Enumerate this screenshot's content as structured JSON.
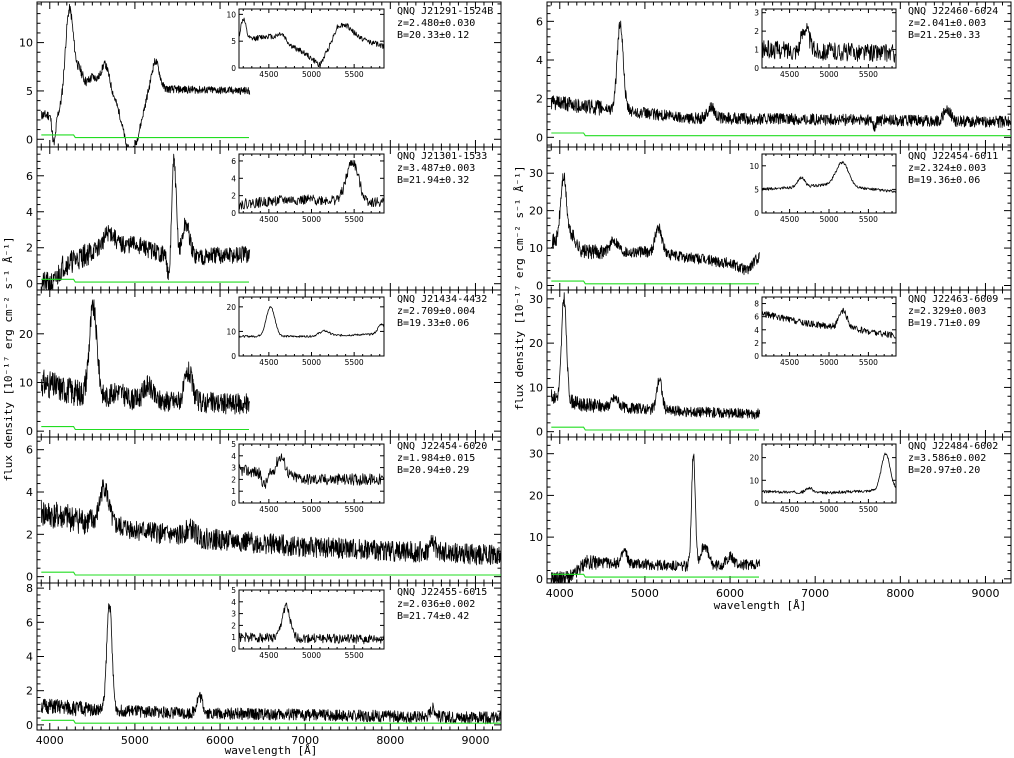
{
  "figure": {
    "xlabel_left": "wavelength [Å]",
    "xlabel_right": "wavelength [Å]",
    "ylabel_left": "flux density [10⁻¹⁷ erg cm⁻² s⁻¹ Å⁻¹]",
    "ylabel_right": "flux density [10⁻¹⁷ erg cm⁻² s⁻¹ Å⁻¹]",
    "colors": {
      "spectrum": "#000000",
      "error": "#22dd22",
      "background": "#ffffff"
    }
  },
  "chart_data": [
    {
      "type": "line",
      "column": "left",
      "row": 0,
      "labels": [
        "QNQ J21291-1524B",
        "z=2.480±0.030",
        "B=20.33±0.12"
      ],
      "xlim": [
        3850,
        9300
      ],
      "ylim": [
        -0.8,
        14.2
      ],
      "ytick_labels": [
        "0",
        "5",
        "10"
      ],
      "x_range": [
        3900,
        6350
      ],
      "series": [
        {
          "continuum": [
            [
              3900,
              2.5
            ],
            [
              4150,
              2.5
            ],
            [
              4500,
              6.5
            ],
            [
              4700,
              5.5
            ],
            [
              4900,
              2
            ],
            [
              5150,
              5
            ],
            [
              5300,
              5.2
            ],
            [
              6350,
              5
            ]
          ],
          "lines": [
            [
              4230,
              10,
              50
            ],
            [
              4350,
              2,
              40
            ],
            [
              4650,
              2,
              40
            ],
            [
              5240,
              3,
              45
            ]
          ],
          "absorptions": [
            [
              4050,
              3,
              20
            ],
            [
              4980,
              4,
              90
            ]
          ],
          "noise": 0.4,
          "seed": 11
        }
      ],
      "inset": {
        "xlim": [
          4150,
          5850
        ],
        "ylim": [
          0,
          11
        ],
        "ytick_labels": [
          "0",
          "5",
          "10"
        ],
        "xtick_labels": [
          "4500",
          "5000",
          "5500"
        ],
        "continuum": [
          [
            4150,
            5
          ],
          [
            4500,
            6
          ],
          [
            4900,
            3
          ],
          [
            5100,
            0.5
          ],
          [
            5300,
            7
          ],
          [
            5850,
            4
          ]
        ],
        "lines": [
          [
            4200,
            4,
            30
          ],
          [
            4650,
            1.5,
            50
          ],
          [
            5400,
            1.5,
            80
          ]
        ],
        "absorptions": [],
        "noise": 0.5,
        "seed": 12
      }
    },
    {
      "type": "line",
      "column": "left",
      "row": 1,
      "labels": [
        "QNQ J21301-1533",
        "z=3.487±0.003",
        "B=21.94±0.32"
      ],
      "xlim": [
        3850,
        9300
      ],
      "ylim": [
        -0.35,
        7.6
      ],
      "ytick_labels": [
        "0",
        "2",
        "4",
        "6"
      ],
      "x_range": [
        3900,
        6350
      ],
      "series": [
        {
          "continuum": [
            [
              3900,
              0
            ],
            [
              4050,
              0
            ],
            [
              4150,
              1
            ],
            [
              4600,
              2
            ],
            [
              5000,
              2.2
            ],
            [
              5400,
              1.5
            ],
            [
              6350,
              1.6
            ]
          ],
          "lines": [
            [
              5460,
              5.3,
              25
            ],
            [
              5600,
              1.8,
              40
            ],
            [
              4700,
              0.8,
              60
            ]
          ],
          "absorptions": [
            [
              5400,
              1.5,
              15
            ]
          ],
          "noise": 0.5,
          "seed": 21
        }
      ],
      "inset": {
        "xlim": [
          4150,
          5850
        ],
        "ylim": [
          0,
          6.8
        ],
        "ytick_labels": [
          "0",
          "2",
          "4",
          "6"
        ],
        "xtick_labels": [
          "4500",
          "5000",
          "5500"
        ],
        "continuum": [
          [
            4150,
            1
          ],
          [
            4700,
            1.5
          ],
          [
            5200,
            1.5
          ],
          [
            5850,
            1.2
          ]
        ],
        "lines": [
          [
            5480,
            4.5,
            70
          ]
        ],
        "absorptions": [],
        "noise": 0.6,
        "seed": 22
      }
    },
    {
      "type": "line",
      "column": "left",
      "row": 2,
      "labels": [
        "QNQ J21434-4432",
        "z=2.709±0.004",
        "B=19.33±0.06"
      ],
      "xlim": [
        3850,
        9300
      ],
      "ylim": [
        -1.2,
        29
      ],
      "ytick_labels": [
        "0",
        "10",
        "20"
      ],
      "x_range": [
        3900,
        6350
      ],
      "series": [
        {
          "continuum": [
            [
              3900,
              10
            ],
            [
              4300,
              8
            ],
            [
              4600,
              7
            ],
            [
              5000,
              6.5
            ],
            [
              6350,
              5.5
            ]
          ],
          "lines": [
            [
              4510,
              18,
              45
            ],
            [
              5150,
              3,
              50
            ],
            [
              5630,
              6,
              45
            ],
            [
              4800,
              1.5,
              60
            ]
          ],
          "absorptions": [],
          "noise": 2.2,
          "seed": 31
        }
      ],
      "inset": {
        "xlim": [
          4150,
          5850
        ],
        "ylim": [
          0,
          24
        ],
        "ytick_labels": [
          "0",
          "10",
          "20"
        ],
        "xtick_labels": [
          "4500",
          "5000",
          "5500"
        ],
        "continuum": [
          [
            4150,
            8
          ],
          [
            5000,
            8
          ],
          [
            5850,
            9
          ]
        ],
        "lines": [
          [
            4520,
            12,
            50
          ],
          [
            5150,
            2,
            60
          ],
          [
            5820,
            4,
            40
          ]
        ],
        "absorptions": [],
        "noise": 0.4,
        "seed": 32
      }
    },
    {
      "type": "line",
      "column": "left",
      "row": 3,
      "labels": [
        "QNQ J22454-6020",
        "z=1.984±0.015",
        "B=20.94±0.29"
      ],
      "xlim": [
        3850,
        9300
      ],
      "ylim": [
        -0.3,
        6.6
      ],
      "ytick_labels": [
        "0",
        "2",
        "4",
        "6"
      ],
      "x_range": [
        3900,
        9300
      ],
      "series": [
        {
          "continuum": [
            [
              3900,
              3
            ],
            [
              4600,
              2.5
            ],
            [
              5500,
              1.9
            ],
            [
              7000,
              1.4
            ],
            [
              9300,
              1
            ]
          ],
          "lines": [
            [
              4640,
              1.8,
              50
            ],
            [
              5650,
              0.4,
              60
            ],
            [
              8500,
              0.5,
              30
            ]
          ],
          "absorptions": [],
          "noise": 0.5,
          "seed": 41
        }
      ],
      "inset": {
        "xlim": [
          4150,
          5850
        ],
        "ylim": [
          0,
          5
        ],
        "ytick_labels": [
          "0",
          "1",
          "2",
          "3",
          "4",
          "5"
        ],
        "xtick_labels": [
          "4500",
          "5000",
          "5500"
        ],
        "continuum": [
          [
            4150,
            2.8
          ],
          [
            5000,
            2
          ],
          [
            5850,
            2
          ]
        ],
        "lines": [
          [
            4640,
            1.6,
            50
          ]
        ],
        "absorptions": [
          [
            4450,
            1,
            30
          ]
        ],
        "noise": 0.5,
        "seed": 42
      }
    },
    {
      "type": "line",
      "column": "left",
      "row": 4,
      "labels": [
        "QNQ J22455-6015",
        "z=2.036±0.002",
        "B=21.74±0.42"
      ],
      "xlim": [
        3850,
        9300
      ],
      "ylim": [
        -0.3,
        8.3
      ],
      "ytick_labels": [
        "0",
        "2",
        "4",
        "6",
        "8"
      ],
      "x_range": [
        3900,
        9300
      ],
      "series": [
        {
          "continuum": [
            [
              3900,
              1.1
            ],
            [
              4500,
              0.9
            ],
            [
              5500,
              0.7
            ],
            [
              9300,
              0.4
            ]
          ],
          "lines": [
            [
              4700,
              6.3,
              30
            ],
            [
              5760,
              1,
              35
            ],
            [
              8500,
              0.5,
              30
            ]
          ],
          "absorptions": [],
          "noise": 0.35,
          "seed": 51
        }
      ],
      "inset": {
        "xlim": [
          4150,
          5850
        ],
        "ylim": [
          0,
          5
        ],
        "ytick_labels": [
          "0",
          "1",
          "2",
          "3",
          "4",
          "5"
        ],
        "xtick_labels": [
          "4500",
          "5000",
          "5500"
        ],
        "continuum": [
          [
            4150,
            1
          ],
          [
            5850,
            0.8
          ]
        ],
        "lines": [
          [
            4700,
            2.7,
            45
          ]
        ],
        "absorptions": [],
        "noise": 0.4,
        "seed": 52
      }
    },
    {
      "type": "line",
      "column": "right",
      "row": 0,
      "labels": [
        "QNQ J22460-6024",
        "z=2.041±0.003",
        "B=21.25±0.33"
      ],
      "xlim": [
        3850,
        9300
      ],
      "ylim": [
        -0.5,
        7
      ],
      "ytick_labels": [
        "0",
        "2",
        "4",
        "6"
      ],
      "x_range": [
        3900,
        9300
      ],
      "series": [
        {
          "continuum": [
            [
              3900,
              1.8
            ],
            [
              4500,
              1.5
            ],
            [
              5500,
              1.0
            ],
            [
              9300,
              0.8
            ]
          ],
          "lines": [
            [
              4710,
              4.5,
              35
            ],
            [
              5780,
              0.6,
              40
            ],
            [
              8550,
              0.6,
              40
            ]
          ],
          "absorptions": [
            [
              7700,
              0.4,
              15
            ]
          ],
          "noise": 0.3,
          "seed": 61
        }
      ],
      "inset": {
        "xlim": [
          4150,
          5850
        ],
        "ylim": [
          0,
          3.2
        ],
        "ytick_labels": [
          "0",
          "1",
          "2",
          "3"
        ],
        "xtick_labels": [
          "4500",
          "5000",
          "5500"
        ],
        "continuum": [
          [
            4150,
            1
          ],
          [
            5850,
            0.8
          ]
        ],
        "lines": [
          [
            4700,
            1.3,
            45
          ]
        ],
        "absorptions": [],
        "noise": 0.5,
        "seed": 62
      }
    },
    {
      "type": "line",
      "column": "right",
      "row": 1,
      "labels": [
        "QNQ J22454-6011",
        "z=2.324±0.003",
        "B=19.36±0.06"
      ],
      "xlim": [
        3850,
        9300
      ],
      "ylim": [
        -1.2,
        37
      ],
      "ytick_labels": [
        "0",
        "10",
        "20",
        "30"
      ],
      "x_range": [
        3900,
        6350
      ],
      "series": [
        {
          "continuum": [
            [
              3900,
              12
            ],
            [
              4300,
              9
            ],
            [
              5000,
              9
            ],
            [
              6000,
              6
            ],
            [
              6200,
              4
            ],
            [
              6350,
              8
            ]
          ],
          "lines": [
            [
              4045,
              18,
              35
            ],
            [
              4640,
              3,
              50
            ],
            [
              5160,
              7,
              40
            ],
            [
              4150,
              3,
              40
            ]
          ],
          "absorptions": [],
          "noise": 1.5,
          "seed": 71
        }
      ],
      "inset": {
        "xlim": [
          4150,
          5850
        ],
        "ylim": [
          0,
          12.5
        ],
        "ytick_labels": [
          "0",
          "5",
          "10"
        ],
        "xtick_labels": [
          "4500",
          "5000",
          "5500"
        ],
        "continuum": [
          [
            4150,
            5
          ],
          [
            5000,
            6
          ],
          [
            5850,
            4.5
          ]
        ],
        "lines": [
          [
            4650,
            2,
            40
          ],
          [
            5170,
            5,
            80
          ]
        ],
        "absorptions": [],
        "noise": 0.3,
        "seed": 72
      }
    },
    {
      "type": "line",
      "column": "right",
      "row": 2,
      "labels": [
        "QNQ J22463-6009",
        "z=2.329±0.003",
        "B=19.71±0.09"
      ],
      "xlim": [
        3850,
        9300
      ],
      "ylim": [
        -1.2,
        32
      ],
      "ytick_labels": [
        "0",
        "10",
        "20",
        "30"
      ],
      "x_range": [
        3900,
        6350
      ],
      "series": [
        {
          "continuum": [
            [
              3900,
              8
            ],
            [
              4300,
              6
            ],
            [
              5500,
              4.5
            ],
            [
              6350,
              4
            ]
          ],
          "lines": [
            [
              4050,
              23,
              28
            ],
            [
              4650,
              2,
              40
            ],
            [
              5170,
              7,
              30
            ]
          ],
          "absorptions": [],
          "noise": 1.2,
          "seed": 81
        }
      ],
      "inset": {
        "xlim": [
          4150,
          5850
        ],
        "ylim": [
          0,
          9
        ],
        "ytick_labels": [
          "0",
          "2",
          "4",
          "6",
          "8"
        ],
        "xtick_labels": [
          "4500",
          "5000",
          "5500"
        ],
        "continuum": [
          [
            4150,
            6.5
          ],
          [
            4700,
            5
          ],
          [
            5400,
            4
          ],
          [
            5850,
            3
          ]
        ],
        "lines": [
          [
            5180,
            2.5,
            50
          ]
        ],
        "absorptions": [],
        "noise": 0.5,
        "seed": 82
      }
    },
    {
      "type": "line",
      "column": "right",
      "row": 3,
      "labels": [
        "QNQ J22484-6002",
        "z=3.586±0.002",
        "B=20.97±0.20"
      ],
      "xlim": [
        3850,
        9300
      ],
      "ylim": [
        -1,
        34
      ],
      "ytick_labels": [
        "0",
        "10",
        "20",
        "30"
      ],
      "x_range": [
        3900,
        6350
      ],
      "series": [
        {
          "continuum": [
            [
              3900,
              0
            ],
            [
              4150,
              0.5
            ],
            [
              4300,
              4
            ],
            [
              5000,
              3.5
            ],
            [
              5400,
              3
            ],
            [
              6350,
              3.5
            ]
          ],
          "lines": [
            [
              5570,
              27,
              22
            ],
            [
              5700,
              5,
              40
            ],
            [
              4760,
              3,
              30
            ],
            [
              6000,
              2,
              40
            ]
          ],
          "absorptions": [],
          "noise": 1.3,
          "seed": 91
        }
      ],
      "inset": {
        "xlim": [
          4150,
          5850
        ],
        "ylim": [
          0,
          26
        ],
        "ytick_labels": [
          "0",
          "10",
          "20"
        ],
        "xtick_labels": [
          "4500",
          "5000",
          "5500"
        ],
        "continuum": [
          [
            4150,
            5
          ],
          [
            5000,
            4.5
          ],
          [
            5850,
            6
          ]
        ],
        "lines": [
          [
            5720,
            16,
            55
          ],
          [
            4750,
            2,
            40
          ]
        ],
        "absorptions": [],
        "noise": 0.6,
        "seed": 92
      }
    }
  ],
  "x_tick_labels": [
    "4000",
    "5000",
    "6000",
    "7000",
    "8000",
    "9000"
  ]
}
